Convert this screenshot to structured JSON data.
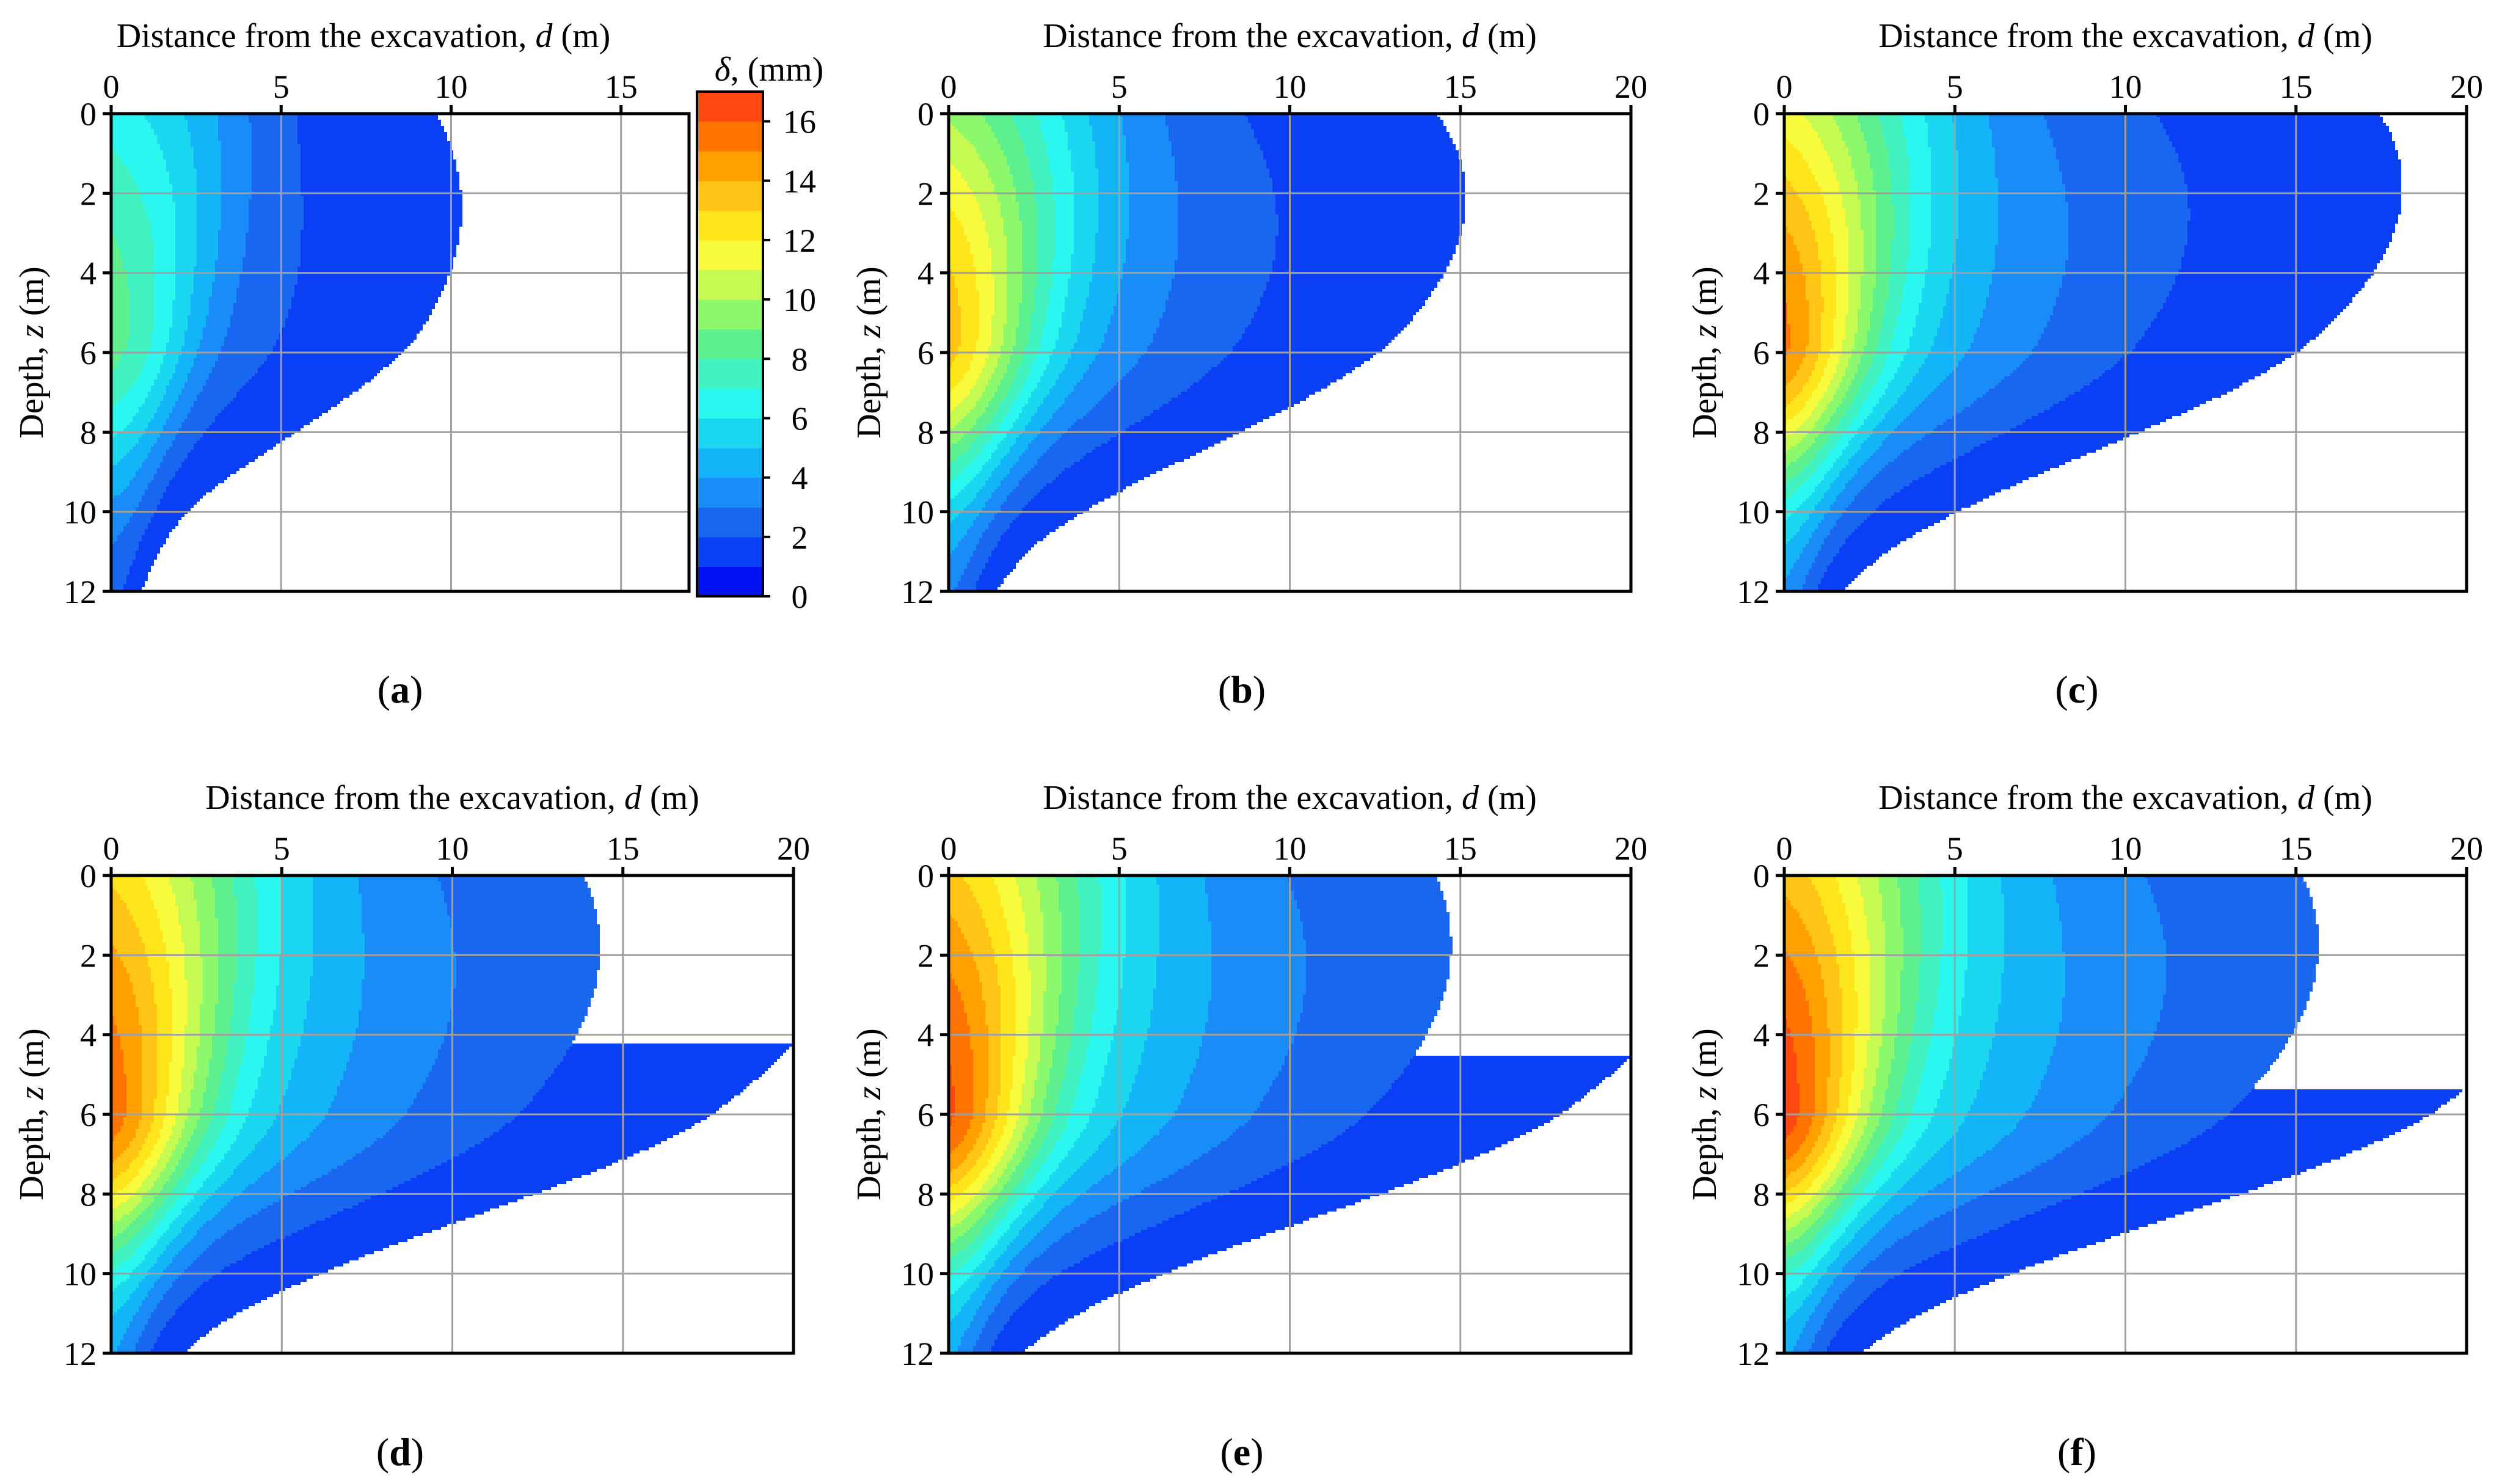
{
  "figure": {
    "panel_prefix": "(",
    "panel_suffix": ")"
  },
  "chart_data": [
    {
      "type": "heatmap",
      "panel": "a",
      "title": "",
      "xlabel_main": "Distance from the excavation, ",
      "xlabel_var": "d",
      "xlabel_unit": " (m)",
      "ylabel_main": "Depth, ",
      "ylabel_var": "z",
      "ylabel_unit": " (m)",
      "xlim": [
        0,
        17
      ],
      "ylim": [
        0,
        12
      ],
      "xticks": [
        0,
        5,
        10,
        15
      ],
      "yticks": [
        0,
        2,
        4,
        6,
        8,
        10,
        12
      ],
      "grid": true,
      "z_label": "δ, (mm)",
      "z_unit": "mm",
      "contour_model": {
        "peak": 8.5,
        "peak_depth": 5.5,
        "surface": 6.5,
        "bottom": 2.0,
        "sigma_top": 2.4,
        "sigma_bottom": 0.5,
        "decay_top": 7.5,
        "decay_bottom": 1.4,
        "decay_gamma": 1.7,
        "shift_per_depth": 1.05,
        "wedge_sharpness": 2.5
      },
      "colorbar": {
        "label_var": "δ",
        "label_unit": ", (mm)",
        "ticks": [
          0,
          2,
          4,
          6,
          8,
          10,
          12,
          14,
          16
        ],
        "levels": [
          0,
          1,
          2,
          3,
          4,
          5,
          6,
          7,
          8,
          9,
          10,
          11,
          12,
          13,
          14,
          15,
          16,
          17
        ],
        "colors": [
          "#0010f0",
          "#0a3ff5",
          "#1966f0",
          "#1a8cf8",
          "#14b4f8",
          "#1ad8f0",
          "#2af7f0",
          "#40f2c0",
          "#5ef08e",
          "#8cf86c",
          "#c4fa52",
          "#f8fa3c",
          "#ffe51c",
          "#ffc414",
          "#ffa000",
          "#ff7400",
          "#ff4810"
        ]
      }
    },
    {
      "type": "heatmap",
      "panel": "b",
      "title": "",
      "xlabel_main": "Distance from the excavation, ",
      "xlabel_var": "d",
      "xlabel_unit": " (m)",
      "ylabel_main": "Depth, ",
      "ylabel_var": "z",
      "ylabel_unit": " (m)",
      "xlim": [
        0,
        20
      ],
      "ylim": [
        0,
        12
      ],
      "xticks": [
        0,
        5,
        10,
        15,
        20
      ],
      "yticks": [
        0,
        2,
        4,
        6,
        8,
        10,
        12
      ],
      "grid": true,
      "z_unit": "mm",
      "contour_model": {
        "peak": 13.5,
        "peak_depth": 5.7,
        "surface": 9.8,
        "bottom": 2.5,
        "sigma_top": 2.6,
        "sigma_bottom": 0.6,
        "decay_top": 8.5,
        "decay_bottom": 1.9,
        "decay_gamma": 1.6,
        "shift_per_depth": 1.15,
        "wedge_sharpness": 2.0
      }
    },
    {
      "type": "heatmap",
      "panel": "c",
      "title": "",
      "xlabel_main": "Distance from the excavation, ",
      "xlabel_var": "d",
      "xlabel_unit": " (m)",
      "ylabel_main": "Depth, ",
      "ylabel_var": "z",
      "ylabel_unit": " (m)",
      "xlim": [
        0,
        20
      ],
      "ylim": [
        0,
        12
      ],
      "xticks": [
        0,
        5,
        10,
        15,
        20
      ],
      "yticks": [
        0,
        2,
        4,
        6,
        8,
        10,
        12
      ],
      "grid": true,
      "z_unit": "mm",
      "contour_model": {
        "peak": 15.2,
        "peak_depth": 5.8,
        "surface": 11.4,
        "bottom": 3.0,
        "sigma_top": 2.6,
        "sigma_bottom": 0.6,
        "decay_top": 9.5,
        "decay_bottom": 2.2,
        "decay_gamma": 1.6,
        "shift_per_depth": 1.2,
        "wedge_sharpness": 2.0
      }
    },
    {
      "type": "heatmap",
      "panel": "d",
      "title": "",
      "xlabel_main": "Distance from the excavation, ",
      "xlabel_var": "d",
      "xlabel_unit": " (m)",
      "ylabel_main": "Depth, ",
      "ylabel_var": "z",
      "ylabel_unit": " (m)",
      "xlim": [
        0,
        20
      ],
      "ylim": [
        0,
        12
      ],
      "xticks": [
        0,
        5,
        10,
        15,
        20
      ],
      "yticks": [
        0,
        2,
        4,
        6,
        8,
        10,
        12
      ],
      "grid": true,
      "z_unit": "mm",
      "contour_model": {
        "peak": 15.6,
        "peak_depth": 6.0,
        "surface": 12.8,
        "bottom": 3.3,
        "sigma_top": 2.7,
        "sigma_bottom": 0.65,
        "decay_top": 11.0,
        "decay_bottom": 2.5,
        "decay_gamma": 1.6,
        "shift_per_depth": 1.25,
        "wedge_sharpness": 2.0
      }
    },
    {
      "type": "heatmap",
      "panel": "e",
      "title": "",
      "xlabel_main": "Distance from the excavation, ",
      "xlabel_var": "d",
      "xlabel_unit": " (m)",
      "ylabel_main": "Depth, ",
      "ylabel_var": "z",
      "ylabel_unit": " (m)",
      "xlim": [
        0,
        20
      ],
      "ylim": [
        0,
        12
      ],
      "xticks": [
        0,
        5,
        10,
        15,
        20
      ],
      "yticks": [
        0,
        2,
        4,
        6,
        8,
        10,
        12
      ],
      "grid": true,
      "z_unit": "mm",
      "contour_model": {
        "peak": 16.2,
        "peak_depth": 6.0,
        "surface": 13.3,
        "bottom": 3.4,
        "sigma_top": 2.7,
        "sigma_bottom": 0.65,
        "decay_top": 11.0,
        "decay_bottom": 2.5,
        "decay_gamma": 1.6,
        "shift_per_depth": 1.25,
        "wedge_sharpness": 2.0
      }
    },
    {
      "type": "heatmap",
      "panel": "f",
      "title": "",
      "xlabel_main": "Distance from the excavation, ",
      "xlabel_var": "d",
      "xlabel_unit": " (m)",
      "ylabel_main": "Depth, ",
      "ylabel_var": "z",
      "ylabel_unit": " (m)",
      "xlim": [
        0,
        20
      ],
      "ylim": [
        0,
        12
      ],
      "xticks": [
        0,
        5,
        10,
        15,
        20
      ],
      "yticks": [
        0,
        2,
        4,
        6,
        8,
        10,
        12
      ],
      "grid": true,
      "z_unit": "mm",
      "contour_model": {
        "peak": 16.6,
        "peak_depth": 6.0,
        "surface": 13.6,
        "bottom": 3.4,
        "sigma_top": 2.7,
        "sigma_bottom": 0.65,
        "decay_top": 11.5,
        "decay_bottom": 2.6,
        "decay_gamma": 1.6,
        "shift_per_depth": 1.25,
        "wedge_sharpness": 2.0
      }
    }
  ]
}
